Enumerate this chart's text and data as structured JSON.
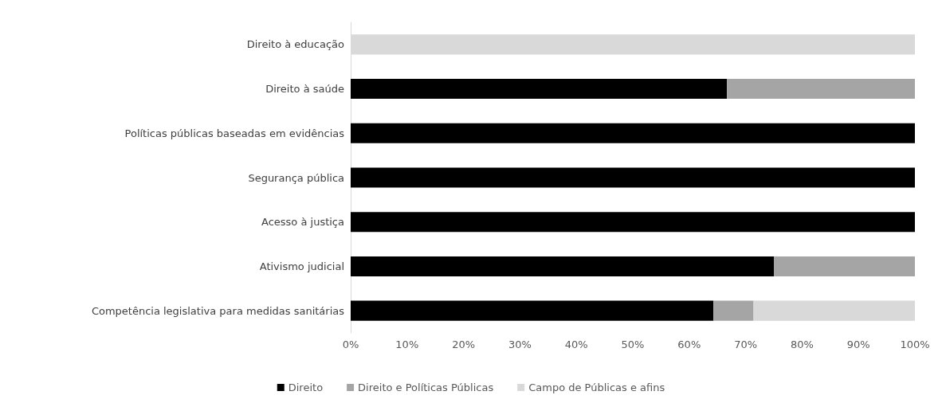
{
  "chart_data": {
    "type": "bar",
    "orientation": "horizontal",
    "stacked": true,
    "categories": [
      "Direito à educação",
      "Direito à saúde",
      "Políticas públicas baseadas em evidências",
      "Segurança pública",
      "Acesso à justiça",
      "Ativismo judicial",
      "Competência legislativa para medidas sanitárias"
    ],
    "series": [
      {
        "name": "Direito",
        "color": "#000000",
        "values": [
          0,
          66.7,
          100,
          100,
          100,
          75,
          64.3
        ]
      },
      {
        "name": "Direito e Políticas Públicas",
        "color": "#a5a5a5",
        "values": [
          0,
          33.3,
          0,
          0,
          0,
          25,
          7.1
        ]
      },
      {
        "name": "Campo de Públicas e afins",
        "color": "#d9d9d9",
        "values": [
          100,
          0,
          0,
          0,
          0,
          0,
          28.6
        ]
      }
    ],
    "xlim": [
      0,
      100
    ],
    "xticks": [
      {
        "value": 0,
        "label": "0%"
      },
      {
        "value": 10,
        "label": "10%"
      },
      {
        "value": 20,
        "label": "20%"
      },
      {
        "value": 30,
        "label": "30%"
      },
      {
        "value": 40,
        "label": "40%"
      },
      {
        "value": 50,
        "label": "50%"
      },
      {
        "value": 60,
        "label": "60%"
      },
      {
        "value": 70,
        "label": "70%"
      },
      {
        "value": 80,
        "label": "80%"
      },
      {
        "value": 90,
        "label": "90%"
      },
      {
        "value": 100,
        "label": "100%"
      }
    ],
    "grid": false,
    "legend": "bottom"
  }
}
